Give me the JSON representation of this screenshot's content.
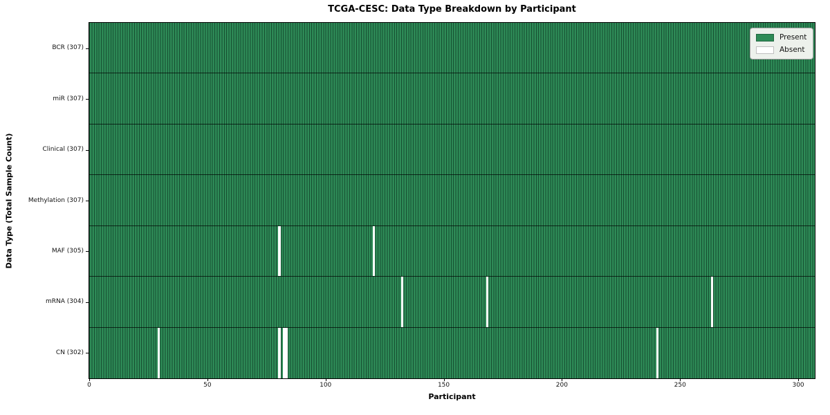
{
  "chart_data": {
    "type": "heatmap",
    "title": "TCGA-CESC: Data Type Breakdown by Participant",
    "xlabel": "Participant",
    "ylabel": "Data Type (Total Sample Count)",
    "n_participants": 307,
    "x_ticks": [
      0,
      50,
      100,
      150,
      200,
      250,
      300
    ],
    "xlim": [
      0,
      307
    ],
    "grid": "vertical cell edges, dark horizontal row separators",
    "legend_position": "upper right",
    "legend": [
      {
        "label": "Present",
        "color": "#2e8b57"
      },
      {
        "label": "Absent",
        "color": "#ffffff"
      }
    ],
    "colors": {
      "present": "#2e8b57",
      "absent": "#ffffff",
      "cell_edge": "#1b3d2b",
      "row_separator": "#1a1a1a",
      "plot_border": "#000000",
      "legend_bg": "#edf1ec"
    },
    "rows": [
      {
        "key": "bcr",
        "label": "BCR (307)",
        "total_samples": 307,
        "absent_participants": []
      },
      {
        "key": "mir",
        "label": "miR (307)",
        "total_samples": 307,
        "absent_participants": []
      },
      {
        "key": "clinical",
        "label": "Clinical (307)",
        "total_samples": 307,
        "absent_participants": []
      },
      {
        "key": "methylation",
        "label": "Methylation (307)",
        "total_samples": 307,
        "absent_participants": []
      },
      {
        "key": "maf",
        "label": "MAF (305)",
        "total_samples": 305,
        "absent_participants": [
          80,
          120
        ]
      },
      {
        "key": "mrna",
        "label": "mRNA (304)",
        "total_samples": 304,
        "absent_participants": [
          132,
          168,
          263
        ]
      },
      {
        "key": "cn",
        "label": "CN (302)",
        "total_samples": 302,
        "absent_participants": [
          29,
          80,
          82,
          83,
          240
        ]
      }
    ]
  }
}
